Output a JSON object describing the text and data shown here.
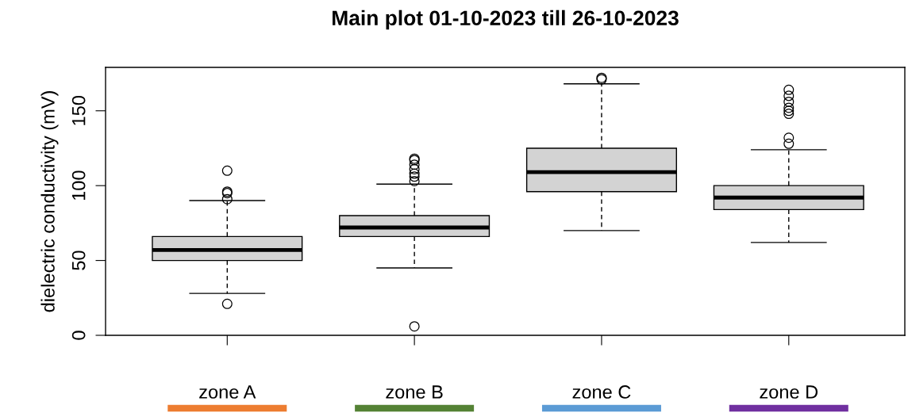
{
  "chart_data": {
    "type": "box",
    "title": "Main plot 01-10-2023 till 26-10-2023",
    "ylabel": "dielectric conductivity (mV)",
    "categories": [
      "zone A",
      "zone B",
      "zone C",
      "zone D"
    ],
    "boxes": [
      {
        "low": 28,
        "q1": 50,
        "median": 57,
        "q3": 66,
        "high": 90,
        "outliers": [
          110,
          96,
          95,
          91,
          21
        ]
      },
      {
        "low": 45,
        "q1": 66,
        "median": 72,
        "q3": 80,
        "high": 101,
        "outliers": [
          118,
          117,
          114,
          111,
          108,
          106,
          103,
          6
        ]
      },
      {
        "low": 70,
        "q1": 96,
        "median": 109,
        "q3": 125,
        "high": 168,
        "outliers": [
          172,
          171
        ]
      },
      {
        "low": 62,
        "q1": 84,
        "median": 92,
        "q3": 100,
        "high": 124,
        "outliers": [
          164,
          160,
          156,
          152,
          150,
          148,
          132,
          128
        ]
      }
    ],
    "color": "#d3d3d3",
    "ylim": [
      0,
      179
    ],
    "yticks": [
      0,
      50,
      100,
      150
    ],
    "grid": false,
    "legend": false
  }
}
